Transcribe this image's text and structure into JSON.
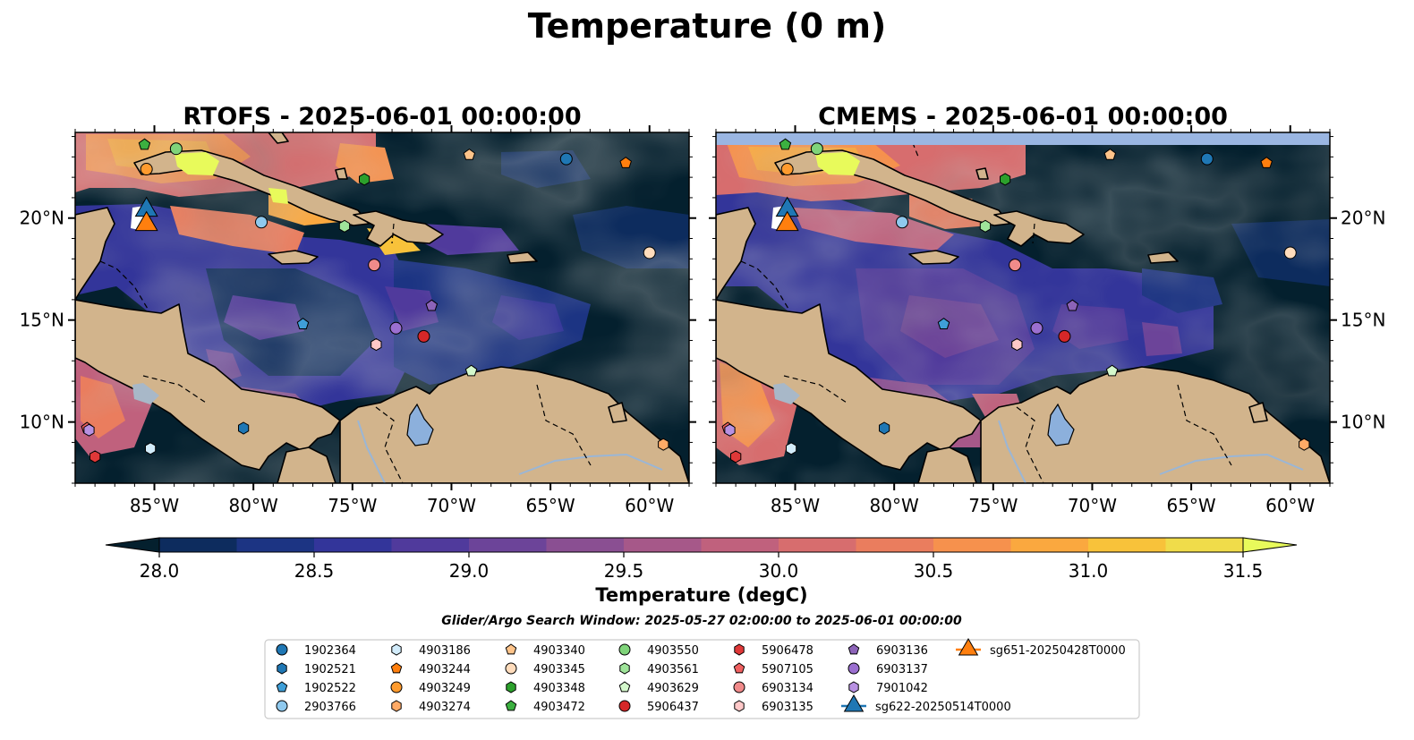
{
  "figure": {
    "suptitle": "Temperature (0 m)",
    "search_window": "Glider/Argo Search Window: 2025-05-27 02:00:00 to 2025-06-01 00:00:00"
  },
  "map_extent": {
    "lon": [
      -89,
      -58
    ],
    "lat": [
      7,
      24.2
    ]
  },
  "panels": [
    {
      "id": "rtofs",
      "title": "RTOFS - 2025-06-01 00:00:00",
      "lat_labels_side": "left"
    },
    {
      "id": "cmems",
      "title": "CMEMS - 2025-06-01 00:00:00",
      "lat_labels_side": "right",
      "nodata_band_top": true
    }
  ],
  "axes": {
    "lon_ticks": [
      {
        "value": -85,
        "label": "85°W"
      },
      {
        "value": -80,
        "label": "80°W"
      },
      {
        "value": -75,
        "label": "75°W"
      },
      {
        "value": -70,
        "label": "70°W"
      },
      {
        "value": -65,
        "label": "65°W"
      },
      {
        "value": -60,
        "label": "60°W"
      }
    ],
    "lat_ticks": [
      {
        "value": 10,
        "label": "10°N"
      },
      {
        "value": 15,
        "label": "15°N"
      },
      {
        "value": 20,
        "label": "20°N"
      }
    ]
  },
  "colorbar": {
    "label": "Temperature (degC)",
    "min": 28.0,
    "max": 31.5,
    "step": 0.25,
    "extend": "both",
    "ticks": [
      {
        "value": 28.0,
        "label": "28.0"
      },
      {
        "value": 28.5,
        "label": "28.5"
      },
      {
        "value": 29.0,
        "label": "29.0"
      },
      {
        "value": 29.5,
        "label": "29.5"
      },
      {
        "value": 30.0,
        "label": "30.0"
      },
      {
        "value": 30.5,
        "label": "30.5"
      },
      {
        "value": 31.0,
        "label": "31.0"
      },
      {
        "value": 31.5,
        "label": "31.5"
      }
    ],
    "colors": [
      "#04202e",
      "#0d2c5e",
      "#1c3483",
      "#33359a",
      "#503a9c",
      "#6c4499",
      "#8a4f92",
      "#a65889",
      "#c0617d",
      "#d76d6e",
      "#ea7d5e",
      "#f6914d",
      "#faa83f",
      "#f8c23a",
      "#f0dc4a",
      "#e8fa5b"
    ]
  },
  "colors": {
    "land": "#d2b48c",
    "lake": "#8cb0dc",
    "ocean_deep": "#04202e",
    "nodata_band": "#9ab6e2"
  },
  "markers": [
    {
      "name": "1902364",
      "shape": "circle",
      "color": "#1f77b4",
      "lon": -64.2,
      "lat": 22.9
    },
    {
      "name": "1902521",
      "shape": "hexagon",
      "color": "#1f77b4",
      "lon": -80.5,
      "lat": 9.7
    },
    {
      "name": "1902522",
      "shape": "pentagon",
      "color": "#3f9fd8",
      "lon": -77.5,
      "lat": 14.8
    },
    {
      "name": "2903766",
      "shape": "circle",
      "color": "#8fc9ee",
      "lon": -79.6,
      "lat": 19.8
    },
    {
      "name": "4903186",
      "shape": "hexagon",
      "color": "#d2ecfb",
      "lon": -85.2,
      "lat": 8.7
    },
    {
      "name": "4903244",
      "shape": "pentagon",
      "color": "#ff7f0e",
      "lon": -61.2,
      "lat": 22.7
    },
    {
      "name": "4903249",
      "shape": "circle",
      "color": "#ff9b2e",
      "lon": -85.4,
      "lat": 22.4
    },
    {
      "name": "4903274",
      "shape": "hexagon",
      "color": "#ffaa66",
      "lon": -59.3,
      "lat": 8.9
    },
    {
      "name": "4903340",
      "shape": "pentagon",
      "color": "#ffc48a",
      "lon": -69.1,
      "lat": 23.1
    },
    {
      "name": "4903345",
      "shape": "circle",
      "color": "#ffdcbc",
      "lon": -60.0,
      "lat": 18.3
    },
    {
      "name": "4903348",
      "shape": "hexagon",
      "color": "#2ca02c",
      "lon": -74.4,
      "lat": 21.9
    },
    {
      "name": "4903472",
      "shape": "pentagon",
      "color": "#3cb040",
      "lon": -85.5,
      "lat": 23.6
    },
    {
      "name": "4903550",
      "shape": "circle",
      "color": "#7fd47a",
      "lon": -83.9,
      "lat": 23.4
    },
    {
      "name": "4903561",
      "shape": "hexagon",
      "color": "#9fe49a",
      "lon": -75.4,
      "lat": 19.6
    },
    {
      "name": "4903629",
      "shape": "pentagon",
      "color": "#d4f8cc",
      "lon": -69.0,
      "lat": 12.5
    },
    {
      "name": "5906437",
      "shape": "circle",
      "color": "#d62728",
      "lon": -71.4,
      "lat": 14.2
    },
    {
      "name": "5906478",
      "shape": "hexagon",
      "color": "#e03838",
      "lon": -88.0,
      "lat": 8.3
    },
    {
      "name": "5907105",
      "shape": "pentagon",
      "color": "#f06060",
      "lon": -88.4,
      "lat": 9.7
    },
    {
      "name": "6903134",
      "shape": "circle",
      "color": "#f08a8a",
      "lon": -73.9,
      "lat": 17.7
    },
    {
      "name": "6903135",
      "shape": "hexagon",
      "color": "#ffc8c8",
      "lon": -73.8,
      "lat": 13.8
    },
    {
      "name": "6903136",
      "shape": "pentagon",
      "color": "#8c63b8",
      "lon": -71.0,
      "lat": 15.7
    },
    {
      "name": "6903137",
      "shape": "circle",
      "color": "#9b6fd0",
      "lon": -72.8,
      "lat": 14.6
    },
    {
      "name": "7901042",
      "shape": "hexagon",
      "color": "#b891e2",
      "lon": -88.3,
      "lat": 9.6
    },
    {
      "name": "sg622-20250514T0000",
      "shape": "triangle",
      "color": "#1f77b4",
      "lon": -85.4,
      "lat": 20.4
    },
    {
      "name": "sg651-20250428T0000",
      "shape": "triangle",
      "color": "#ff7f0e",
      "lon": -85.4,
      "lat": 19.7
    }
  ]
}
